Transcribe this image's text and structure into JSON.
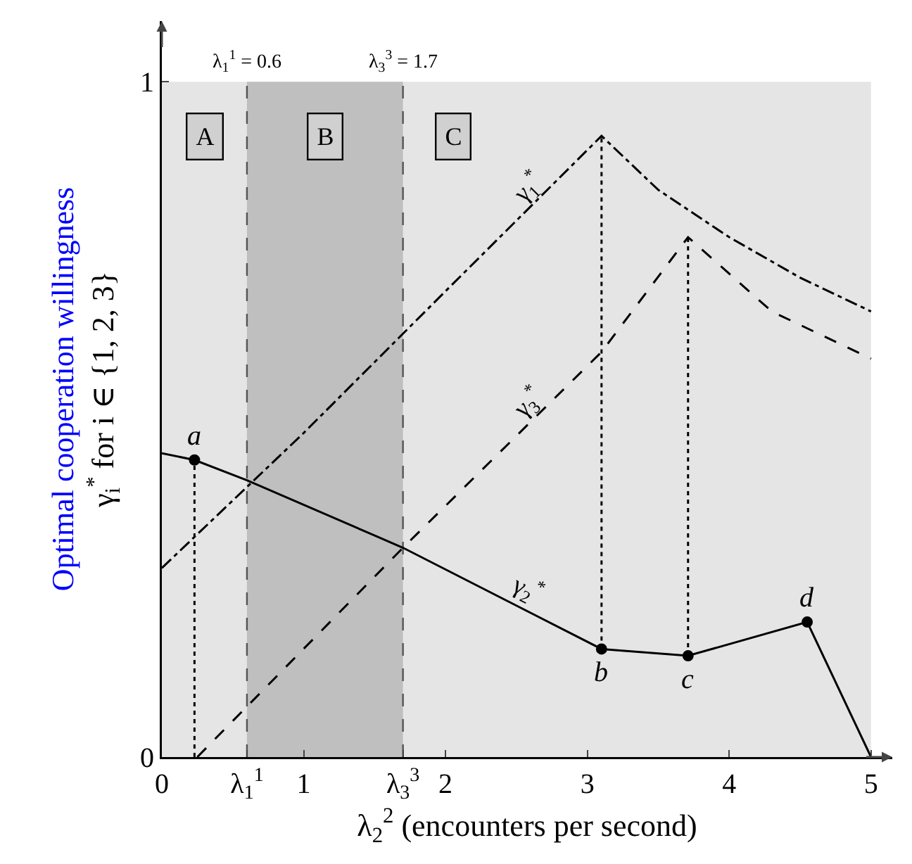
{
  "chart_data": {
    "type": "line",
    "xlabel": "λ$_{2}$$^{2}$ (encounters per second)",
    "ylabel": "Optimal cooperation willingness\nγ$_{i}$$^{*}$ for i ∈ {1, 2, 3}",
    "xlim": [
      0,
      5.15
    ],
    "ylim": [
      0,
      1.09
    ],
    "xticks": [
      0,
      {
        "value": 0.6,
        "label": "λ$_{1}$$^{1}$"
      },
      1,
      {
        "value": 1.7,
        "label": "λ$_{3}$$^{3}$"
      },
      2,
      3,
      4,
      5
    ],
    "yticks": [
      0,
      1
    ],
    "grid": false,
    "series": [
      {
        "name": "γ$_{1}$$^{*}$",
        "color": "#000000",
        "line_style": "dashdot",
        "x": [
          0,
          1,
          2,
          3.1,
          3.5,
          4,
          4.5,
          5
        ],
        "values": [
          0.28,
          0.48,
          0.69,
          0.92,
          0.84,
          0.77,
          0.71,
          0.66
        ]
      },
      {
        "name": "γ$_{3}$$^{*}$",
        "color": "#000000",
        "line_style": "dashed",
        "x": [
          0.25,
          1.7,
          3.1,
          3.71,
          4.3,
          5
        ],
        "values": [
          0,
          0.31,
          0.6,
          0.77,
          0.66,
          0.59
        ]
      },
      {
        "name": "γ$_{2}$$^{*}$",
        "color": "#000000",
        "line_style": "solid",
        "x": [
          0,
          0.23,
          0.6,
          1.7,
          3.1,
          3.71,
          4.55,
          5
        ],
        "values": [
          0.45,
          0.44,
          0.41,
          0.31,
          0.16,
          0.15,
          0.2,
          0
        ]
      },
      {
        "color": "#000000",
        "line_style": "dotted",
        "x": [
          0.23,
          0.23
        ],
        "values": [
          0,
          0.44
        ]
      },
      {
        "color": "#000000",
        "line_style": "dotted",
        "x": [
          3.1,
          3.1
        ],
        "values": [
          0.16,
          0.92
        ]
      },
      {
        "color": "#000000",
        "line_style": "dotted",
        "x": [
          3.71,
          3.71
        ],
        "values": [
          0.15,
          0.77
        ]
      },
      {
        "type": "scatter",
        "marker": "circle",
        "color": "#000000",
        "x": [
          0.23,
          3.1,
          3.71,
          4.55
        ],
        "values": [
          0.44,
          0.16,
          0.15,
          0.2
        ]
      }
    ],
    "bands": [
      {
        "axis": "x",
        "from": 0,
        "to": 5,
        "color": "#e5e5e5"
      },
      {
        "axis": "x",
        "from": 0.6,
        "to": 1.7,
        "color": "#bfbfbf"
      }
    ],
    "ref_lines": [
      {
        "axis": "x",
        "value": 0.6,
        "label": "λ$_{1}$$^{1}$ = 0.6",
        "line_style": "dashed",
        "color": "#555555"
      },
      {
        "axis": "x",
        "value": 1.7,
        "label": "λ$_{3}$$^{3}$ = 1.7",
        "line_style": "dashed",
        "color": "#555555"
      }
    ],
    "annotations": [
      {
        "text": "A",
        "x": 0.3,
        "y": 0.92
      },
      {
        "text": "B",
        "x": 1.15,
        "y": 0.92
      },
      {
        "text": "C",
        "x": 2.05,
        "y": 0.92
      },
      {
        "text": "a",
        "x": 0.23,
        "y": 0.44
      },
      {
        "text": "b",
        "x": 3.1,
        "y": 0.16
      },
      {
        "text": "c",
        "x": 3.71,
        "y": 0.15
      },
      {
        "text": "d",
        "x": 4.55,
        "y": 0.2
      }
    ]
  }
}
